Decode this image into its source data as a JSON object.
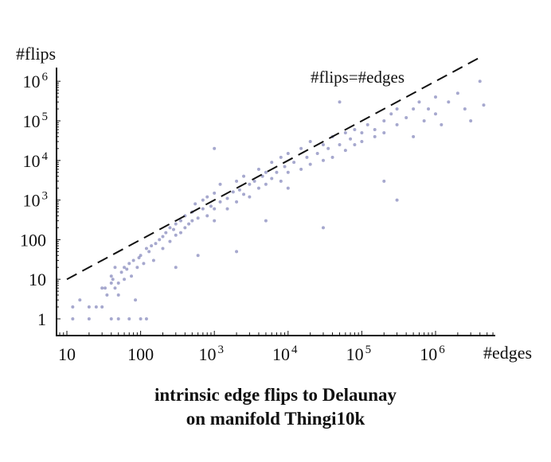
{
  "chart_data": {
    "type": "scatter",
    "title": "intrinsic edge flips to Delaunay",
    "subtitle": "on manifold Thingi10k",
    "xlabel": "#edges",
    "ylabel": "#flips",
    "xscale": "log",
    "yscale": "log",
    "xlim": [
      10,
      5000000
    ],
    "ylim": [
      0.4,
      3000000
    ],
    "xticks": [
      {
        "v": 10,
        "label": "10"
      },
      {
        "v": 100,
        "label": "100"
      },
      {
        "v": 1000,
        "label": "10",
        "exp": "3"
      },
      {
        "v": 10000,
        "label": "10",
        "exp": "4"
      },
      {
        "v": 100000,
        "label": "10",
        "exp": "5"
      },
      {
        "v": 1000000,
        "label": "10",
        "exp": "6"
      }
    ],
    "yticks": [
      {
        "v": 1,
        "label": "1"
      },
      {
        "v": 10,
        "label": "10"
      },
      {
        "v": 100,
        "label": "100"
      },
      {
        "v": 1000,
        "label": "10",
        "exp": "3"
      },
      {
        "v": 10000,
        "label": "10",
        "exp": "4"
      },
      {
        "v": 100000,
        "label": "10",
        "exp": "5"
      },
      {
        "v": 1000000,
        "label": "10",
        "exp": "6"
      }
    ],
    "reference_line": {
      "label": "#flips=#edges",
      "x": [
        10,
        4000000
      ],
      "y": [
        10,
        4000000
      ]
    },
    "point_color": "#3a3f93",
    "points": [
      [
        12,
        1
      ],
      [
        20,
        1
      ],
      [
        12,
        2
      ],
      [
        15,
        3
      ],
      [
        20,
        2
      ],
      [
        25,
        2
      ],
      [
        30,
        2
      ],
      [
        30,
        6
      ],
      [
        33,
        6
      ],
      [
        35,
        4
      ],
      [
        40,
        12
      ],
      [
        40,
        8
      ],
      [
        42,
        10
      ],
      [
        45,
        20
      ],
      [
        45,
        6
      ],
      [
        50,
        4
      ],
      [
        50,
        8
      ],
      [
        55,
        15
      ],
      [
        60,
        10
      ],
      [
        60,
        20
      ],
      [
        65,
        18
      ],
      [
        70,
        25
      ],
      [
        70,
        1
      ],
      [
        75,
        12
      ],
      [
        80,
        30
      ],
      [
        85,
        3
      ],
      [
        90,
        20
      ],
      [
        95,
        35
      ],
      [
        100,
        40
      ],
      [
        110,
        25
      ],
      [
        120,
        60
      ],
      [
        120,
        1
      ],
      [
        130,
        50
      ],
      [
        140,
        70
      ],
      [
        150,
        30
      ],
      [
        160,
        80
      ],
      [
        180,
        100
      ],
      [
        200,
        60
      ],
      [
        200,
        120
      ],
      [
        220,
        150
      ],
      [
        250,
        90
      ],
      [
        250,
        200
      ],
      [
        280,
        180
      ],
      [
        300,
        130
      ],
      [
        300,
        250
      ],
      [
        350,
        300
      ],
      [
        350,
        150
      ],
      [
        400,
        400
      ],
      [
        400,
        200
      ],
      [
        450,
        250
      ],
      [
        500,
        500
      ],
      [
        500,
        300
      ],
      [
        550,
        800
      ],
      [
        600,
        350
      ],
      [
        700,
        600
      ],
      [
        700,
        1000
      ],
      [
        800,
        400
      ],
      [
        800,
        1200
      ],
      [
        900,
        700
      ],
      [
        1000,
        600
      ],
      [
        1000,
        1500
      ],
      [
        1000,
        300
      ],
      [
        1200,
        900
      ],
      [
        1200,
        2500
      ],
      [
        1500,
        1100
      ],
      [
        1500,
        600
      ],
      [
        1800,
        1600
      ],
      [
        2000,
        900
      ],
      [
        2000,
        3000
      ],
      [
        2200,
        1800
      ],
      [
        2500,
        1400
      ],
      [
        2500,
        4000
      ],
      [
        3000,
        2500
      ],
      [
        3000,
        1200
      ],
      [
        3500,
        3000
      ],
      [
        4000,
        2000
      ],
      [
        4000,
        6000
      ],
      [
        4500,
        4000
      ],
      [
        5000,
        2500
      ],
      [
        5000,
        5000
      ],
      [
        6000,
        3500
      ],
      [
        6000,
        9000
      ],
      [
        7000,
        5000
      ],
      [
        8000,
        3000
      ],
      [
        8000,
        12000
      ],
      [
        9000,
        7000
      ],
      [
        10000,
        5000
      ],
      [
        10000,
        15000
      ],
      [
        10000,
        2000
      ],
      [
        12000,
        9000
      ],
      [
        15000,
        6000
      ],
      [
        15000,
        20000
      ],
      [
        18000,
        12000
      ],
      [
        20000,
        8000
      ],
      [
        20000,
        30000
      ],
      [
        25000,
        15000
      ],
      [
        30000,
        10000
      ],
      [
        30000,
        25000
      ],
      [
        35000,
        20000
      ],
      [
        40000,
        12000
      ],
      [
        40000,
        40000
      ],
      [
        50000,
        25000
      ],
      [
        60000,
        18000
      ],
      [
        60000,
        50000
      ],
      [
        70000,
        35000
      ],
      [
        80000,
        25000
      ],
      [
        80000,
        60000
      ],
      [
        100000,
        50000
      ],
      [
        100000,
        30000
      ],
      [
        120000,
        80000
      ],
      [
        150000,
        60000
      ],
      [
        150000,
        40000
      ],
      [
        200000,
        100000
      ],
      [
        200000,
        50000
      ],
      [
        250000,
        150000
      ],
      [
        300000,
        80000
      ],
      [
        300000,
        200000
      ],
      [
        400000,
        120000
      ],
      [
        500000,
        200000
      ],
      [
        500000,
        40000
      ],
      [
        600000,
        300000
      ],
      [
        700000,
        100000
      ],
      [
        800000,
        200000
      ],
      [
        1000000,
        150000
      ],
      [
        1000000,
        400000
      ],
      [
        1200000,
        80000
      ],
      [
        1500000,
        300000
      ],
      [
        2000000,
        500000
      ],
      [
        2500000,
        200000
      ],
      [
        3000000,
        100000
      ],
      [
        4000000,
        1000000
      ],
      [
        4500000,
        250000
      ],
      [
        300,
        20
      ],
      [
        600,
        40
      ],
      [
        2000,
        50
      ],
      [
        5000,
        300
      ],
      [
        30000,
        200
      ],
      [
        200000,
        3000
      ],
      [
        1000,
        20000
      ],
      [
        50000,
        300000
      ],
      [
        300000,
        1000
      ],
      [
        50,
        1
      ],
      [
        100,
        1
      ],
      [
        40,
        1
      ]
    ]
  }
}
